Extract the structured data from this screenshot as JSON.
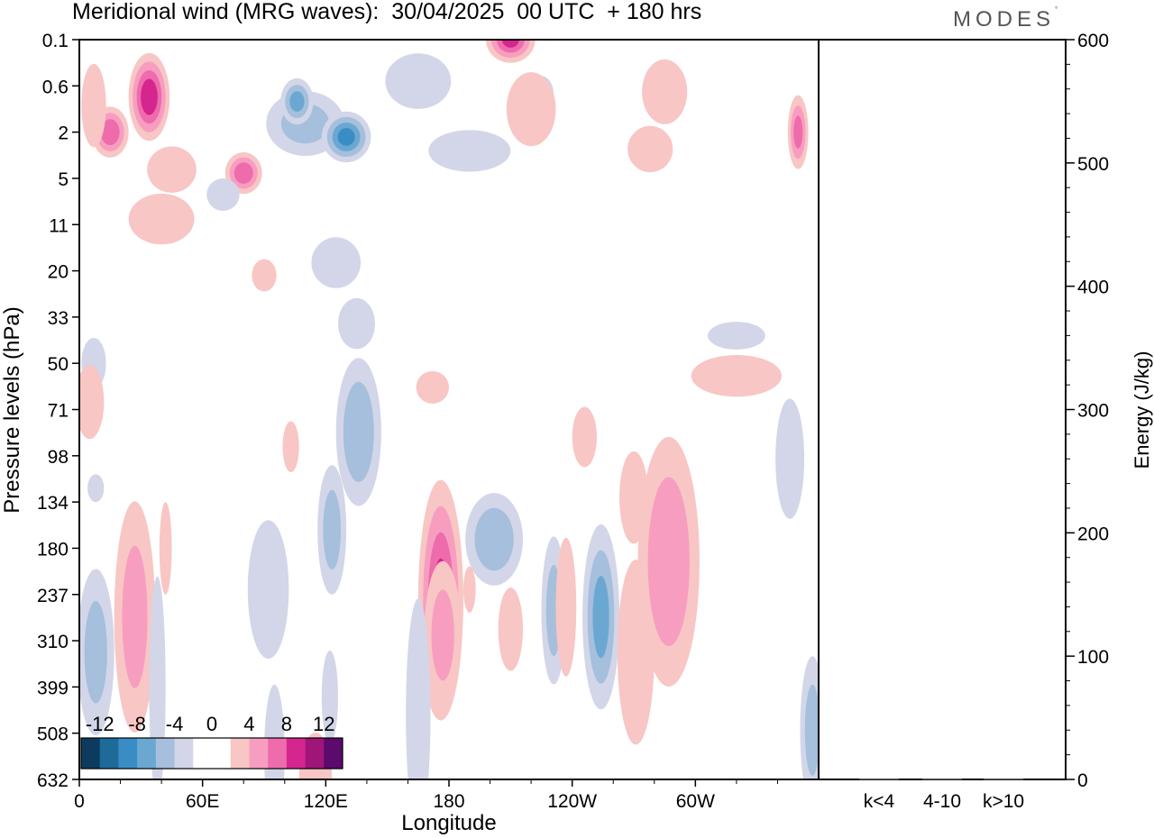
{
  "title": "Meridional wind (MRG waves):  30/04/2025  00 UTC  + 180 hrs",
  "brand": "MODES",
  "brand_mark": "°",
  "chart_data": [
    {
      "type": "heatmap",
      "xlabel": "Longitude",
      "ylabel": "Pressure levels (hPa)",
      "x_ticks": [
        "0",
        "60E",
        "120E",
        "180",
        "120W",
        "60W"
      ],
      "y_ticks": [
        "0.1",
        "0.6",
        "2",
        "5",
        "11",
        "20",
        "33",
        "50",
        "71",
        "98",
        "134",
        "180",
        "237",
        "310",
        "399",
        "508",
        "632"
      ],
      "colorbar": {
        "labels": [
          "-12",
          "-8",
          "-4",
          "0",
          "4",
          "8",
          "12"
        ],
        "colors": [
          "#0d3b5e",
          "#1e6b9a",
          "#3a8cc4",
          "#6aa8d2",
          "#a5bfdc",
          "#d2d6e8",
          "#ffffff",
          "#ffffff",
          "#f8c6c4",
          "#f79ec0",
          "#ee6cab",
          "#d4268e",
          "#a01678",
          "#5c0a6b"
        ]
      },
      "contours": [
        {
          "lon": 34,
          "p": 0.8,
          "w": 10,
          "h": 0.95,
          "v": 9
        },
        {
          "lon": 15,
          "p": 2,
          "w": 9,
          "h": 0.55,
          "v": 7
        },
        {
          "lon": 110,
          "p": 1.6,
          "w": 19,
          "h": 0.7,
          "v": -4
        },
        {
          "lon": 130,
          "p": 2.2,
          "w": 12,
          "h": 0.55,
          "v": -8
        },
        {
          "lon": 106,
          "p": 0.9,
          "w": 8,
          "h": 0.5,
          "v": -6
        },
        {
          "lon": 225,
          "p": 0.75,
          "w": 6,
          "h": 0.4,
          "v": -6
        },
        {
          "lon": 165,
          "p": 0.5,
          "w": 16,
          "h": 0.6,
          "v": -3
        },
        {
          "lon": 220,
          "p": 1.1,
          "w": 12,
          "h": 0.8,
          "v": 3
        },
        {
          "lon": 210,
          "p": 0.1,
          "w": 12,
          "h": 0.5,
          "v": 8
        },
        {
          "lon": 285,
          "p": 0.7,
          "w": 11,
          "h": 0.7,
          "v": 3
        },
        {
          "lon": 278,
          "p": 2.8,
          "w": 11,
          "h": 0.5,
          "v": 3
        },
        {
          "lon": 350,
          "p": 2,
          "w": 5,
          "h": 0.8,
          "v": 6
        },
        {
          "lon": 7,
          "p": 1,
          "w": 6,
          "h": 0.9,
          "v": 3
        },
        {
          "lon": 45,
          "p": 4.2,
          "w": 12,
          "h": 0.5,
          "v": 3
        },
        {
          "lon": 80,
          "p": 4.5,
          "w": 9,
          "h": 0.45,
          "v": 7
        },
        {
          "lon": 190,
          "p": 2.9,
          "w": 20,
          "h": 0.45,
          "v": -3
        },
        {
          "lon": 40,
          "p": 10,
          "w": 16,
          "h": 0.55,
          "v": 3
        },
        {
          "lon": 70,
          "p": 6.6,
          "w": 8,
          "h": 0.35,
          "v": -3
        },
        {
          "lon": 90,
          "p": 21,
          "w": 6,
          "h": 0.35,
          "v": 3
        },
        {
          "lon": 125,
          "p": 18,
          "w": 12,
          "h": 0.55,
          "v": -3
        },
        {
          "lon": 135,
          "p": 35,
          "w": 9,
          "h": 0.55,
          "v": -3
        },
        {
          "lon": 320,
          "p": 39,
          "w": 14,
          "h": 0.3,
          "v": -3
        },
        {
          "lon": 320,
          "p": 55,
          "w": 22,
          "h": 0.45,
          "v": 3
        },
        {
          "lon": 7,
          "p": 50,
          "w": 6,
          "h": 0.55,
          "v": -3
        },
        {
          "lon": 5,
          "p": 67,
          "w": 7,
          "h": 0.8,
          "v": 3
        },
        {
          "lon": 136,
          "p": 83,
          "w": 11,
          "h": 1.6,
          "v": -5
        },
        {
          "lon": 103,
          "p": 92,
          "w": 4,
          "h": 0.55,
          "v": 3
        },
        {
          "lon": 172,
          "p": 60,
          "w": 8,
          "h": 0.35,
          "v": 3
        },
        {
          "lon": 246,
          "p": 86,
          "w": 6,
          "h": 0.65,
          "v": 3
        },
        {
          "lon": 346,
          "p": 100,
          "w": 7,
          "h": 1.3,
          "v": -3
        },
        {
          "lon": 27,
          "p": 270,
          "w": 10,
          "h": 2.5,
          "v": 4
        },
        {
          "lon": 42,
          "p": 180,
          "w": 3,
          "h": 1.0,
          "v": 3
        },
        {
          "lon": 38,
          "p": 400,
          "w": 4,
          "h": 2.4,
          "v": -3
        },
        {
          "lon": 176,
          "p": 245,
          "w": 11,
          "h": 2.6,
          "v": 8
        },
        {
          "lon": 177,
          "p": 300,
          "w": 9,
          "h": 1.6,
          "v": 4
        },
        {
          "lon": 165,
          "p": 460,
          "w": 6,
          "h": 2.5,
          "v": -3
        },
        {
          "lon": 202,
          "p": 170,
          "w": 14,
          "h": 1.0,
          "v": -5
        },
        {
          "lon": 254,
          "p": 270,
          "w": 9,
          "h": 2.0,
          "v": -6
        },
        {
          "lon": 231,
          "p": 260,
          "w": 6,
          "h": 1.6,
          "v": -4
        },
        {
          "lon": 237,
          "p": 255,
          "w": 5,
          "h": 1.5,
          "v": 3
        },
        {
          "lon": 271,
          "p": 330,
          "w": 9,
          "h": 2.0,
          "v": 3
        },
        {
          "lon": 287,
          "p": 195,
          "w": 15,
          "h": 2.7,
          "v": 5
        },
        {
          "lon": 270,
          "p": 130,
          "w": 7,
          "h": 1.0,
          "v": 3
        },
        {
          "lon": 123,
          "p": 160,
          "w": 7,
          "h": 1.4,
          "v": -4
        },
        {
          "lon": 92,
          "p": 230,
          "w": 10,
          "h": 1.5,
          "v": -3
        },
        {
          "lon": 8,
          "p": 330,
          "w": 9,
          "h": 1.8,
          "v": -4
        },
        {
          "lon": 115,
          "p": 630,
          "w": 8,
          "h": 1.0,
          "v": 3
        },
        {
          "lon": 210,
          "p": 290,
          "w": 6,
          "h": 0.9,
          "v": 3
        },
        {
          "lon": 190,
          "p": 230,
          "w": 3,
          "h": 0.5,
          "v": 3
        },
        {
          "lon": 357,
          "p": 500,
          "w": 6,
          "h": 1.6,
          "v": -4
        },
        {
          "lon": 95,
          "p": 560,
          "w": 5,
          "h": 1.5,
          "v": -3
        },
        {
          "lon": 122,
          "p": 420,
          "w": 4,
          "h": 1.0,
          "v": -3
        },
        {
          "lon": 8,
          "p": 122,
          "w": 4,
          "h": 0.3,
          "v": -3
        }
      ]
    },
    {
      "type": "bar",
      "categories": [
        "k<4",
        "4-10",
        "k>10"
      ],
      "values": [
        0,
        0,
        0
      ],
      "ylabel": "Energy (J/kg)",
      "y_ticks": [
        "0",
        "100",
        "200",
        "300",
        "400",
        "500",
        "600"
      ],
      "ylim": [
        0,
        600
      ]
    }
  ]
}
